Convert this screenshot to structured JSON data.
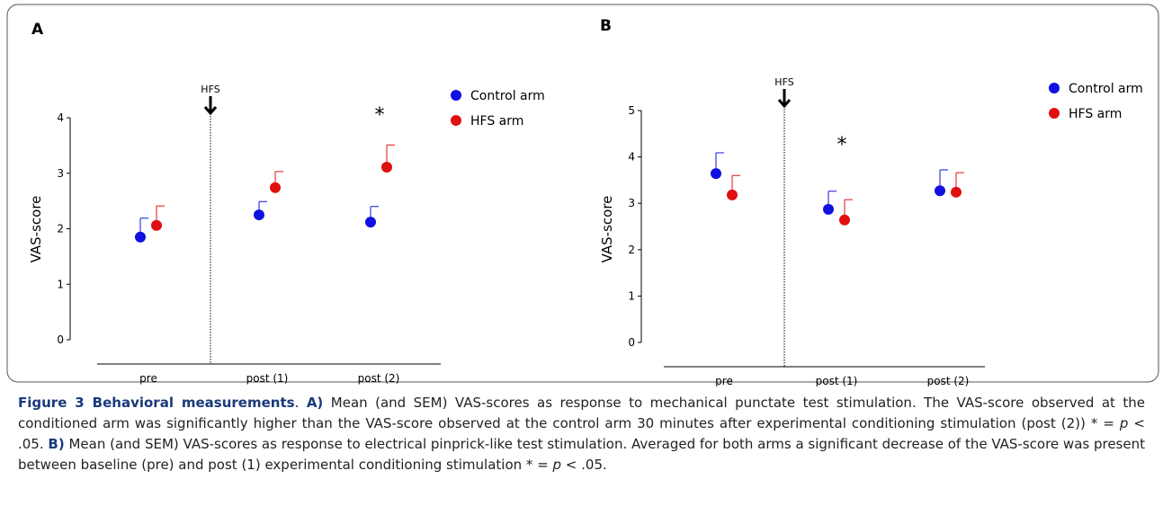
{
  "chart_data": [
    {
      "type": "scatter",
      "panel": "A",
      "ylabel": "VAS-score",
      "categories": [
        "pre",
        "post (1)",
        "post (2)"
      ],
      "series": [
        {
          "name": "Control arm",
          "color": "#1010e0",
          "values": [
            1.85,
            2.25,
            2.12
          ],
          "errors": [
            0.34,
            0.24,
            0.28
          ]
        },
        {
          "name": "HFS arm",
          "color": "#e01010",
          "values": [
            2.06,
            2.74,
            3.11
          ],
          "errors": [
            0.35,
            0.29,
            0.4
          ]
        }
      ],
      "ylim": [
        0,
        4
      ],
      "yticks": [
        0,
        1,
        2,
        3,
        4
      ],
      "annotations": [
        "HFS",
        "*"
      ]
    },
    {
      "type": "scatter",
      "panel": "B",
      "ylabel": "VAS-score",
      "categories": [
        "pre",
        "post (1)",
        "post (2)"
      ],
      "series": [
        {
          "name": "Control arm",
          "color": "#1010e0",
          "values": [
            3.64,
            2.87,
            3.27
          ],
          "errors": [
            0.45,
            0.39,
            0.45
          ]
        },
        {
          "name": "HFS arm",
          "color": "#e01010",
          "values": [
            3.18,
            2.64,
            3.24
          ],
          "errors": [
            0.42,
            0.44,
            0.42
          ]
        }
      ],
      "ylim": [
        0,
        5
      ],
      "yticks": [
        0,
        1,
        2,
        3,
        4,
        5
      ],
      "annotations": [
        "HFS",
        "*"
      ]
    }
  ],
  "caption": [
    {
      "text": "Figure 3 Behavioral measurements",
      "style": "bold"
    },
    {
      "text": ". ",
      "style": "normal"
    },
    {
      "text": "A)",
      "style": "bold"
    },
    {
      "text": " Mean (and SEM) VAS-scores as response to mechanical punctate test stimulation. The VAS-score observed at the conditioned arm was significantly higher than the VAS-score observed at the control arm 30 minutes after experimental conditioning stimulation (post (2)) * = ",
      "style": "normal"
    },
    {
      "text": "p",
      "style": "italic"
    },
    {
      "text": " < .05. ",
      "style": "normal"
    },
    {
      "text": "B)",
      "style": "bold"
    },
    {
      "text": " Mean (and SEM) VAS-scores as response to electrical pinprick-like test stimulation. Averaged for both arms a significant decrease of the VAS-score was present between baseline (pre) and post (1) experimental conditioning stimulation * = ",
      "style": "normal"
    },
    {
      "text": "p",
      "style": "italic"
    },
    {
      "text": " < .05.",
      "style": "normal"
    }
  ]
}
